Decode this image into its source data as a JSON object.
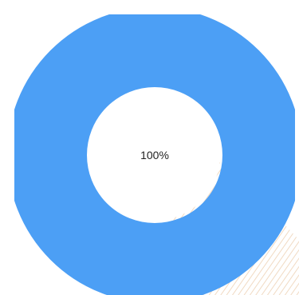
{
  "progress": {
    "value": 1.0,
    "label": "100%",
    "colors": {
      "ring": "#4c9ff5",
      "hole": "#ffffff",
      "text": "#222222",
      "background_pattern": "#f1dbc4"
    }
  }
}
